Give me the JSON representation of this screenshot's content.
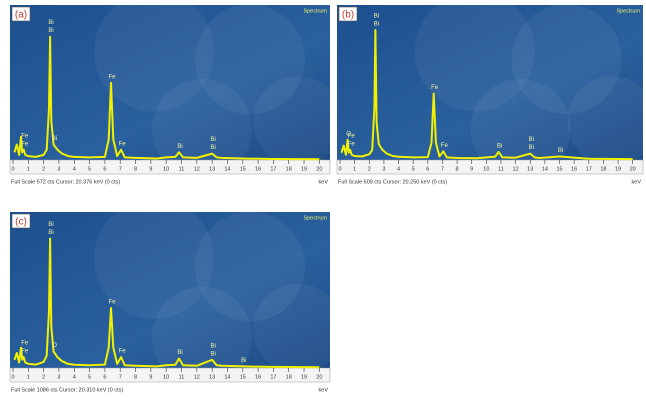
{
  "chart_data": [
    {
      "type": "line",
      "label": "(a)",
      "legend": "Spectrum",
      "footer": "Full Scale 572 cts Cursor: 20.376 keV (0 cts)",
      "xlabel": "keV",
      "x": [
        0.1,
        0.25,
        0.4,
        0.52,
        0.6,
        0.7,
        0.8,
        1.0,
        1.5,
        2.0,
        2.2,
        2.35,
        2.42,
        2.5,
        2.65,
        2.9,
        3.2,
        3.6,
        4.0,
        5.0,
        6.0,
        6.25,
        6.4,
        6.55,
        6.8,
        7.06,
        7.3,
        8.0,
        9.4,
        10.0,
        10.6,
        10.84,
        11.1,
        12.0,
        13.0,
        13.3,
        13.6,
        15.0,
        17.0,
        20.0
      ],
      "values": [
        30,
        60,
        20,
        90,
        30,
        40,
        20,
        15,
        12,
        20,
        40,
        200,
        480,
        150,
        60,
        40,
        25,
        15,
        12,
        10,
        12,
        80,
        300,
        80,
        15,
        40,
        10,
        8,
        6,
        10,
        12,
        30,
        10,
        8,
        25,
        10,
        8,
        6,
        4,
        3
      ],
      "color": "#f0f000",
      "xlim": [
        0,
        20.5
      ],
      "ylim": [
        0,
        572
      ],
      "xticks": [
        0,
        1,
        2,
        3,
        4,
        5,
        6,
        7,
        8,
        9,
        10,
        11,
        12,
        13,
        14,
        15,
        16,
        17,
        18,
        19,
        20
      ],
      "annotations": [
        {
          "text": "Fe",
          "x": 0.7
        },
        {
          "text": "Fe",
          "x": 0.7
        },
        {
          "text": "Bi",
          "x": 2.42
        },
        {
          "text": "Bi",
          "x": 2.42
        },
        {
          "text": "Bi",
          "x": 2.65
        },
        {
          "text": "Fe",
          "x": 6.4
        },
        {
          "text": "Fe",
          "x": 7.06
        },
        {
          "text": "Bi",
          "x": 10.84
        },
        {
          "text": "Bi",
          "x": 13.0
        },
        {
          "text": "Bi",
          "x": 13.0
        }
      ]
    },
    {
      "type": "line",
      "label": "(b)",
      "legend": "Spectrum",
      "footer": "Full Scale 509 cts Cursor: 20.250 keV (0 cts)",
      "xlabel": "keV",
      "x": [
        0.1,
        0.25,
        0.4,
        0.52,
        0.6,
        0.7,
        0.8,
        1.0,
        1.5,
        2.0,
        2.2,
        2.35,
        2.42,
        2.5,
        2.65,
        2.9,
        3.2,
        3.6,
        4.0,
        5.0,
        6.0,
        6.25,
        6.4,
        6.55,
        6.8,
        7.06,
        7.3,
        8.0,
        9.4,
        10.0,
        10.6,
        10.84,
        11.1,
        12.0,
        13.0,
        13.3,
        13.6,
        15.0,
        17.0,
        20.0
      ],
      "values": [
        25,
        50,
        18,
        70,
        25,
        35,
        18,
        14,
        12,
        20,
        35,
        180,
        450,
        130,
        55,
        35,
        22,
        14,
        11,
        9,
        10,
        60,
        230,
        60,
        12,
        30,
        9,
        7,
        6,
        9,
        11,
        28,
        9,
        8,
        22,
        9,
        7,
        12,
        4,
        3
      ],
      "color": "#f0f000",
      "xlim": [
        0,
        20.5
      ],
      "ylim": [
        0,
        509
      ],
      "xticks": [
        0,
        1,
        2,
        3,
        4,
        5,
        6,
        7,
        8,
        9,
        10,
        11,
        12,
        13,
        14,
        15,
        16,
        17,
        18,
        19,
        20
      ],
      "annotations": [
        {
          "text": "Fe",
          "x": 0.7
        },
        {
          "text": "Fe",
          "x": 0.7
        },
        {
          "text": "Bi",
          "x": 2.42
        },
        {
          "text": "Bi",
          "x": 2.42
        },
        {
          "text": "O",
          "x": 0.52
        },
        {
          "text": "Fe",
          "x": 6.4
        },
        {
          "text": "Fe",
          "x": 7.06
        },
        {
          "text": "Bi",
          "x": 10.84
        },
        {
          "text": "Bi",
          "x": 13.0
        },
        {
          "text": "Bi",
          "x": 13.0
        },
        {
          "text": "Bi",
          "x": 15.0
        }
      ]
    },
    {
      "type": "line",
      "label": "(c)",
      "legend": "Spectrum",
      "footer": "Full Scale 1086 cts Cursor: 20.310 keV (0 cts)",
      "xlabel": "keV",
      "x": [
        0.1,
        0.25,
        0.4,
        0.52,
        0.6,
        0.7,
        0.8,
        1.0,
        1.5,
        2.0,
        2.2,
        2.35,
        2.42,
        2.5,
        2.65,
        2.9,
        3.2,
        3.6,
        4.0,
        5.0,
        6.0,
        6.25,
        6.4,
        6.55,
        6.8,
        7.06,
        7.3,
        8.0,
        9.4,
        10.0,
        10.6,
        10.84,
        11.1,
        12.0,
        13.0,
        13.3,
        13.6,
        15.0,
        17.0,
        20.0
      ],
      "values": [
        60,
        110,
        40,
        150,
        60,
        80,
        40,
        30,
        25,
        45,
        90,
        420,
        950,
        300,
        120,
        80,
        50,
        30,
        24,
        20,
        25,
        150,
        440,
        150,
        30,
        80,
        20,
        16,
        12,
        20,
        24,
        70,
        20,
        16,
        60,
        20,
        16,
        12,
        8,
        6
      ],
      "color": "#f0f000",
      "xlim": [
        0,
        20.5
      ],
      "ylim": [
        0,
        1086
      ],
      "xticks": [
        0,
        1,
        2,
        3,
        4,
        5,
        6,
        7,
        8,
        9,
        10,
        11,
        12,
        13,
        14,
        15,
        16,
        17,
        18,
        19,
        20
      ],
      "annotations": [
        {
          "text": "Fe",
          "x": 0.7
        },
        {
          "text": "Fe",
          "x": 0.7
        },
        {
          "text": "Bi",
          "x": 2.42
        },
        {
          "text": "Bi",
          "x": 2.42
        },
        {
          "text": "O",
          "x": 2.65
        },
        {
          "text": "Fe",
          "x": 6.4
        },
        {
          "text": "Fe",
          "x": 7.06
        },
        {
          "text": "Bi",
          "x": 10.84
        },
        {
          "text": "Bi",
          "x": 13.0
        },
        {
          "text": "Bi",
          "x": 13.0
        },
        {
          "text": "Bi",
          "x": 15.0
        }
      ]
    }
  ]
}
